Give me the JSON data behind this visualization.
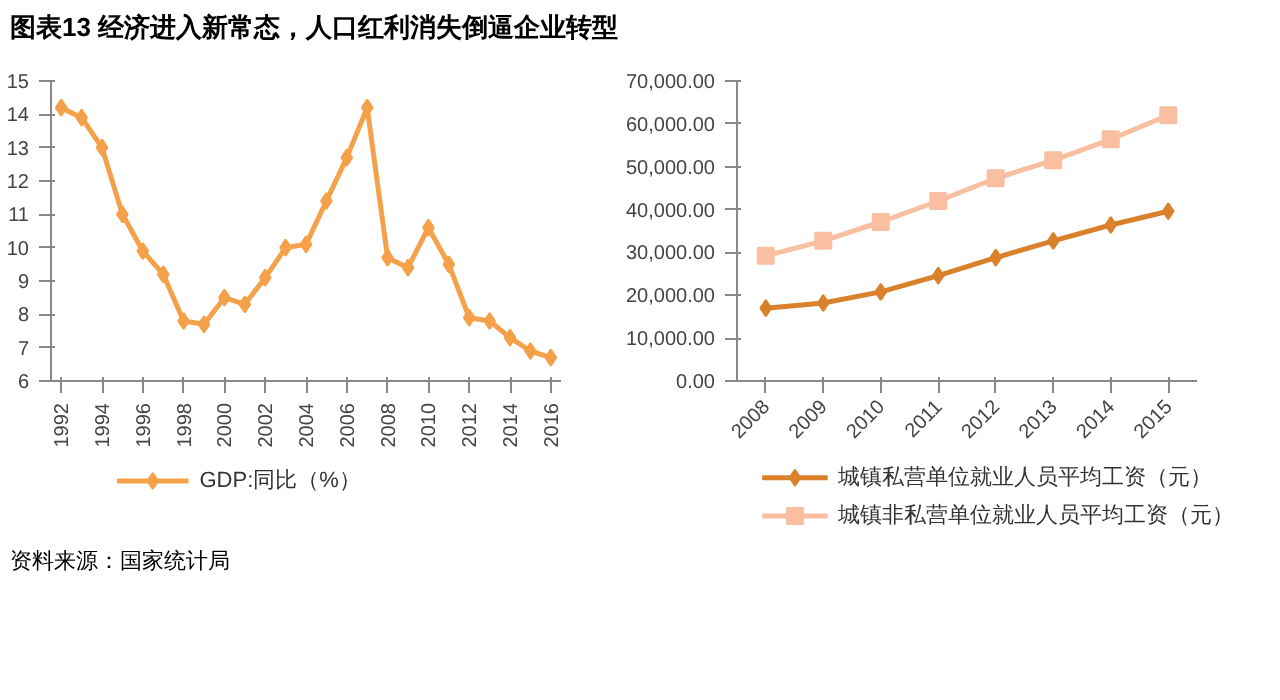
{
  "chart_data": [
    {
      "type": "line",
      "title": "图表13  经济进入新常态，人口红利消失倒逼企业转型",
      "annotations": [
        "资料来源：国家统计局"
      ],
      "categories": [
        "1992",
        null,
        "1994",
        null,
        "1996",
        null,
        "1998",
        null,
        "2000",
        null,
        "2002",
        null,
        "2004",
        null,
        "2006",
        null,
        "2008",
        null,
        "2010",
        null,
        "2012",
        null,
        "2014",
        null,
        "2016"
      ],
      "series": [
        {
          "name": "GDP:同比（%）",
          "color": "#f5a04a",
          "marker": "diamond",
          "values": [
            14.2,
            13.9,
            13.0,
            11.0,
            9.9,
            9.2,
            7.8,
            7.7,
            8.5,
            8.3,
            9.1,
            10.0,
            10.1,
            11.4,
            12.7,
            14.2,
            9.7,
            9.4,
            10.6,
            9.5,
            7.9,
            7.8,
            7.3,
            6.9,
            6.7
          ]
        }
      ],
      "ylim": [
        6,
        15
      ],
      "yticks": [
        6,
        7,
        8,
        9,
        10,
        11,
        12,
        13,
        14,
        15
      ],
      "grid": false,
      "legend": "bottom",
      "line_style": "solid"
    },
    {
      "type": "line",
      "categories": [
        "2008",
        "2009",
        "2010",
        "2011",
        "2012",
        "2013",
        "2014",
        "2015"
      ],
      "series": [
        {
          "name": "城镇私营单位就业人员平均工资（元）",
          "color": "#d9822b",
          "marker": "diamond",
          "values": [
            17000,
            18200,
            20800,
            24600,
            28800,
            32700,
            36400,
            39600
          ]
        },
        {
          "name": "城镇非私营单位就业人员平均工资（元）",
          "color": "#f9bfa0",
          "marker": "square",
          "values": [
            29200,
            32700,
            37100,
            42000,
            47300,
            51500,
            56400,
            62000
          ]
        }
      ],
      "ylim": [
        0,
        70000
      ],
      "yticks": [
        {
          "value": 0,
          "label": "0.00"
        },
        {
          "value": 10000,
          "label": "10,000.00"
        },
        {
          "value": 20000,
          "label": "20,000.00"
        },
        {
          "value": 30000,
          "label": "30,000.00"
        },
        {
          "value": 40000,
          "label": "40,000.00"
        },
        {
          "value": 50000,
          "label": "50,000.00"
        },
        {
          "value": 60000,
          "label": "60,000.00"
        },
        {
          "value": 70000,
          "label": "70,000.00"
        }
      ],
      "grid": false,
      "legend": "bottom",
      "line_style": "solid"
    }
  ]
}
